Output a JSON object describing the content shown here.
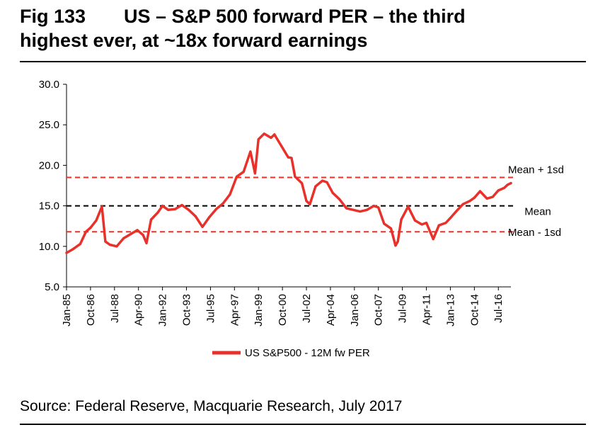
{
  "figure": {
    "number": "Fig 133",
    "title_line1": "US – S&P 500 forward PER – the third",
    "title_line2": "highest ever, at ~18x forward earnings",
    "source": "Source: Federal Reserve, Macquarie Research, July 2017"
  },
  "colors": {
    "series": "#e8312a",
    "mean_line": "#000000",
    "sd_lines": "#e8312a"
  },
  "chart_data": {
    "type": "line",
    "title": "US – S&P 500 forward PER – the third highest ever, at ~18x forward earnings",
    "xlabel": "",
    "ylabel": "",
    "ylim": [
      5,
      30
    ],
    "yticks": [
      "5.0",
      "10.0",
      "15.0",
      "20.0",
      "25.0",
      "30.0"
    ],
    "xticks": [
      "Jan-85",
      "Oct-86",
      "Jul-88",
      "Apr-90",
      "Jan-92",
      "Oct-93",
      "Jul-95",
      "Apr-97",
      "Jan-99",
      "Oct-00",
      "Jul-02",
      "Apr-04",
      "Jan-06",
      "Oct-07",
      "Jul-09",
      "Apr-11",
      "Jan-13",
      "Oct-14",
      "Jul-16"
    ],
    "grid": false,
    "legend_position": "bottom",
    "series": [
      {
        "name": "US S&P500 - 12M fw PER",
        "x": [
          "1985-01",
          "1985-06",
          "1986-01",
          "1986-06",
          "1986-10",
          "1987-03",
          "1987-08",
          "1987-11",
          "1988-03",
          "1988-09",
          "1989-03",
          "1989-09",
          "1990-03",
          "1990-08",
          "1990-11",
          "1991-03",
          "1991-09",
          "1992-01",
          "1992-06",
          "1992-12",
          "1993-06",
          "1993-12",
          "1994-06",
          "1994-12",
          "1995-06",
          "1995-12",
          "1996-06",
          "1996-12",
          "1997-06",
          "1997-12",
          "1998-06",
          "1998-10",
          "1999-01",
          "1999-06",
          "1999-12",
          "2000-03",
          "2000-09",
          "2001-03",
          "2001-06",
          "2001-09",
          "2002-03",
          "2002-07",
          "2002-10",
          "2003-03",
          "2003-09",
          "2004-01",
          "2004-06",
          "2004-12",
          "2005-06",
          "2005-12",
          "2006-06",
          "2006-12",
          "2007-06",
          "2007-10",
          "2008-03",
          "2008-09",
          "2009-01",
          "2009-03",
          "2009-06",
          "2009-12",
          "2010-06",
          "2010-12",
          "2011-04",
          "2011-10",
          "2012-03",
          "2012-09",
          "2013-01",
          "2013-06",
          "2013-12",
          "2014-06",
          "2014-10",
          "2015-03",
          "2015-09",
          "2016-02",
          "2016-07",
          "2016-12",
          "2017-03",
          "2017-06"
        ],
        "values": [
          9.2,
          9.6,
          10.3,
          11.8,
          12.3,
          13.2,
          14.9,
          10.6,
          10.2,
          10.0,
          11.0,
          11.5,
          12.0,
          11.4,
          10.4,
          13.3,
          14.2,
          15.0,
          14.5,
          14.6,
          15.1,
          14.5,
          13.7,
          12.4,
          13.6,
          14.6,
          15.3,
          16.4,
          18.6,
          19.2,
          21.7,
          19.0,
          23.2,
          23.9,
          23.4,
          23.8,
          22.4,
          21.0,
          20.9,
          18.6,
          17.8,
          15.6,
          15.2,
          17.4,
          18.1,
          17.9,
          16.6,
          15.8,
          14.7,
          14.5,
          14.3,
          14.5,
          15.0,
          14.8,
          12.8,
          12.2,
          10.1,
          10.6,
          13.3,
          14.9,
          13.2,
          12.7,
          12.9,
          10.9,
          12.6,
          12.9,
          13.5,
          14.3,
          15.2,
          15.6,
          16.0,
          16.8,
          15.9,
          16.1,
          16.9,
          17.2,
          17.6,
          17.8
        ]
      }
    ],
    "reference_lines": [
      {
        "name": "Mean + 1sd",
        "value": 18.5,
        "style": "dashed"
      },
      {
        "name": "Mean",
        "value": 15.0,
        "style": "dashed"
      },
      {
        "name": "Mean - 1sd",
        "value": 11.8,
        "style": "dashed"
      }
    ],
    "x_range": [
      "1985-01",
      "2017-06"
    ]
  }
}
